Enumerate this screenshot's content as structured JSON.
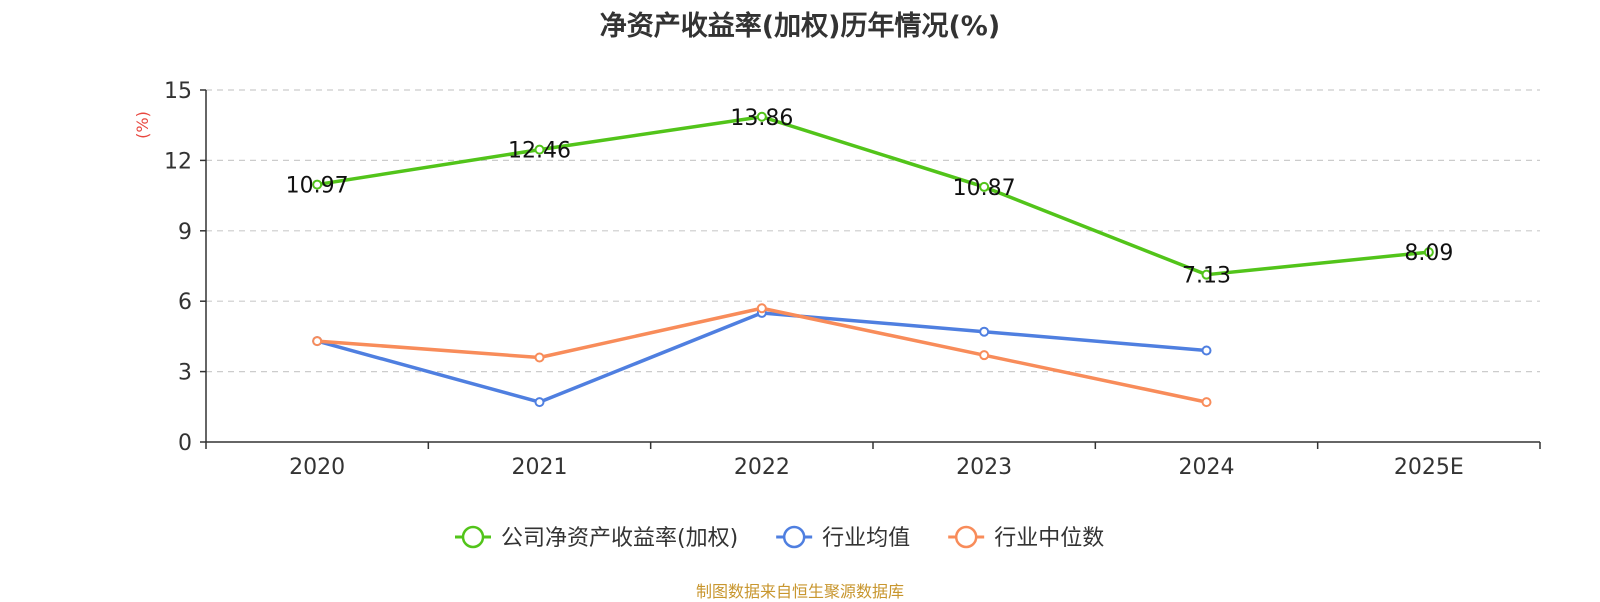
{
  "title": "净资产收益率(加权)历年情况(%)",
  "source": "制图数据来自恒生聚源数据库",
  "chart_data": {
    "type": "line",
    "title": "净资产收益率(加权)历年情况(%)",
    "ylabel": "(%)",
    "xlabel": "",
    "categories": [
      "2020",
      "2021",
      "2022",
      "2023",
      "2024",
      "2025E"
    ],
    "yticks": [
      0,
      3,
      6,
      9,
      12,
      15
    ],
    "ylim": [
      0,
      15
    ],
    "grid": true,
    "legend_position": "bottom-center",
    "series": [
      {
        "name": "公司净资产收益率(加权)",
        "color": "#52c41a",
        "values": [
          10.97,
          12.46,
          13.86,
          10.87,
          7.13,
          8.09
        ],
        "labels": true
      },
      {
        "name": "行业均值",
        "color": "#4f7fe0",
        "values": [
          4.3,
          1.7,
          5.5,
          4.7,
          3.9,
          null
        ],
        "labels": false
      },
      {
        "name": "行业中位数",
        "color": "#f88c5a",
        "values": [
          4.3,
          3.6,
          5.7,
          3.7,
          1.7,
          null
        ],
        "labels": false
      }
    ]
  }
}
